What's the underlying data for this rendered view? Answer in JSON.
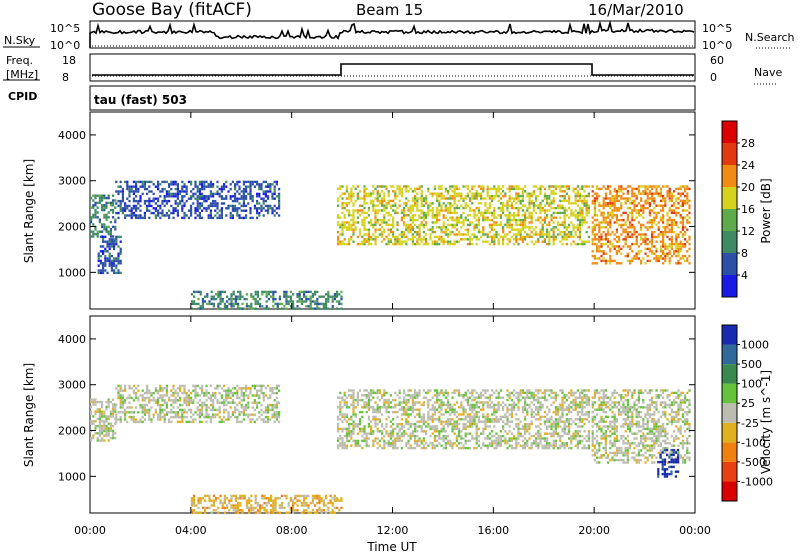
{
  "header": {
    "station": "Goose Bay (fitACF)",
    "beam": "Beam 15",
    "date": "16/Mar/2010"
  },
  "top_panels": {
    "nsky_label": "N.Sky",
    "nsearch_label": "N.Search",
    "nsky_ticks": [
      "10^5",
      "10^0"
    ],
    "freq_label_top": "Freq.",
    "freq_label_unit": "[MHz]",
    "freq_ticks": [
      "18",
      "8"
    ],
    "nave_label": "Nave",
    "nave_ticks": [
      "60",
      "0"
    ],
    "cpid_label": "CPID",
    "cpid_text": "tau (fast) 503"
  },
  "colors": {
    "power_scale": [
      "#1a1ae6",
      "#2c4fa8",
      "#3f8a64",
      "#5faa4a",
      "#d6d21e",
      "#f08c14",
      "#e23a10",
      "#dd0000"
    ],
    "velocity_scale": [
      "#1a2ab0",
      "#2f6a9a",
      "#3a8a50",
      "#66c23c",
      "#bcbcb0",
      "#e0b020",
      "#f08010",
      "#e84010",
      "#d80000"
    ]
  },
  "chart_data": [
    {
      "type": "heatmap",
      "name": "power",
      "ylabel": "Slant Range [km]",
      "xlabel": "",
      "xlim": [
        0,
        24
      ],
      "ylim": [
        200,
        4500
      ],
      "x_ticks": [
        "00:00",
        "04:00",
        "08:00",
        "12:00",
        "16:00",
        "20:00",
        "00:00"
      ],
      "y_ticks": [
        1000,
        2000,
        3000,
        4000
      ],
      "colorbar": {
        "label": "Power [dB]",
        "ticks": [
          "28",
          "24",
          "20",
          "16",
          "12",
          "8",
          "4"
        ],
        "range": [
          0,
          30
        ]
      },
      "regions": [
        {
          "t0": 0.0,
          "t1": 1.0,
          "r0": 1800,
          "r1": 2700,
          "level": 2
        },
        {
          "t0": 0.3,
          "t1": 1.2,
          "r0": 1000,
          "r1": 1800,
          "level": 1
        },
        {
          "t0": 1.0,
          "t1": 7.5,
          "r0": 2200,
          "r1": 3000,
          "level": 1
        },
        {
          "t0": 9.8,
          "t1": 19.8,
          "r0": 1600,
          "r1": 2900,
          "level": 4
        },
        {
          "t0": 19.9,
          "t1": 23.8,
          "r0": 1200,
          "r1": 2900,
          "level": 5
        },
        {
          "t0": 4.0,
          "t1": 10.0,
          "r0": 200,
          "r1": 600,
          "level": 2
        }
      ]
    },
    {
      "type": "heatmap",
      "name": "velocity",
      "ylabel": "Slant Range [km]",
      "xlabel": "Time UT",
      "xlim": [
        0,
        24
      ],
      "ylim": [
        200,
        4500
      ],
      "x_ticks": [
        "00:00",
        "04:00",
        "08:00",
        "12:00",
        "16:00",
        "20:00",
        "00:00"
      ],
      "y_ticks": [
        1000,
        2000,
        3000,
        4000
      ],
      "colorbar": {
        "label": "Velocity [m s^-1]",
        "ticks": [
          "1000",
          "500",
          "100",
          "25",
          "-25",
          "-100",
          "-500",
          "-1000"
        ],
        "range": [
          -1000,
          1000
        ]
      },
      "regions": [
        {
          "t0": 0.0,
          "t1": 1.0,
          "r0": 1800,
          "r1": 2700,
          "level": 4
        },
        {
          "t0": 1.0,
          "t1": 7.5,
          "r0": 2200,
          "r1": 3000,
          "level": 4
        },
        {
          "t0": 9.8,
          "t1": 19.8,
          "r0": 1600,
          "r1": 2900,
          "level": 4
        },
        {
          "t0": 19.9,
          "t1": 23.8,
          "r0": 1300,
          "r1": 2900,
          "level": 4
        },
        {
          "t0": 22.5,
          "t1": 23.3,
          "r0": 1000,
          "r1": 1600,
          "level": 0
        },
        {
          "t0": 4.0,
          "t1": 10.0,
          "r0": 200,
          "r1": 600,
          "level": 5
        }
      ]
    }
  ]
}
